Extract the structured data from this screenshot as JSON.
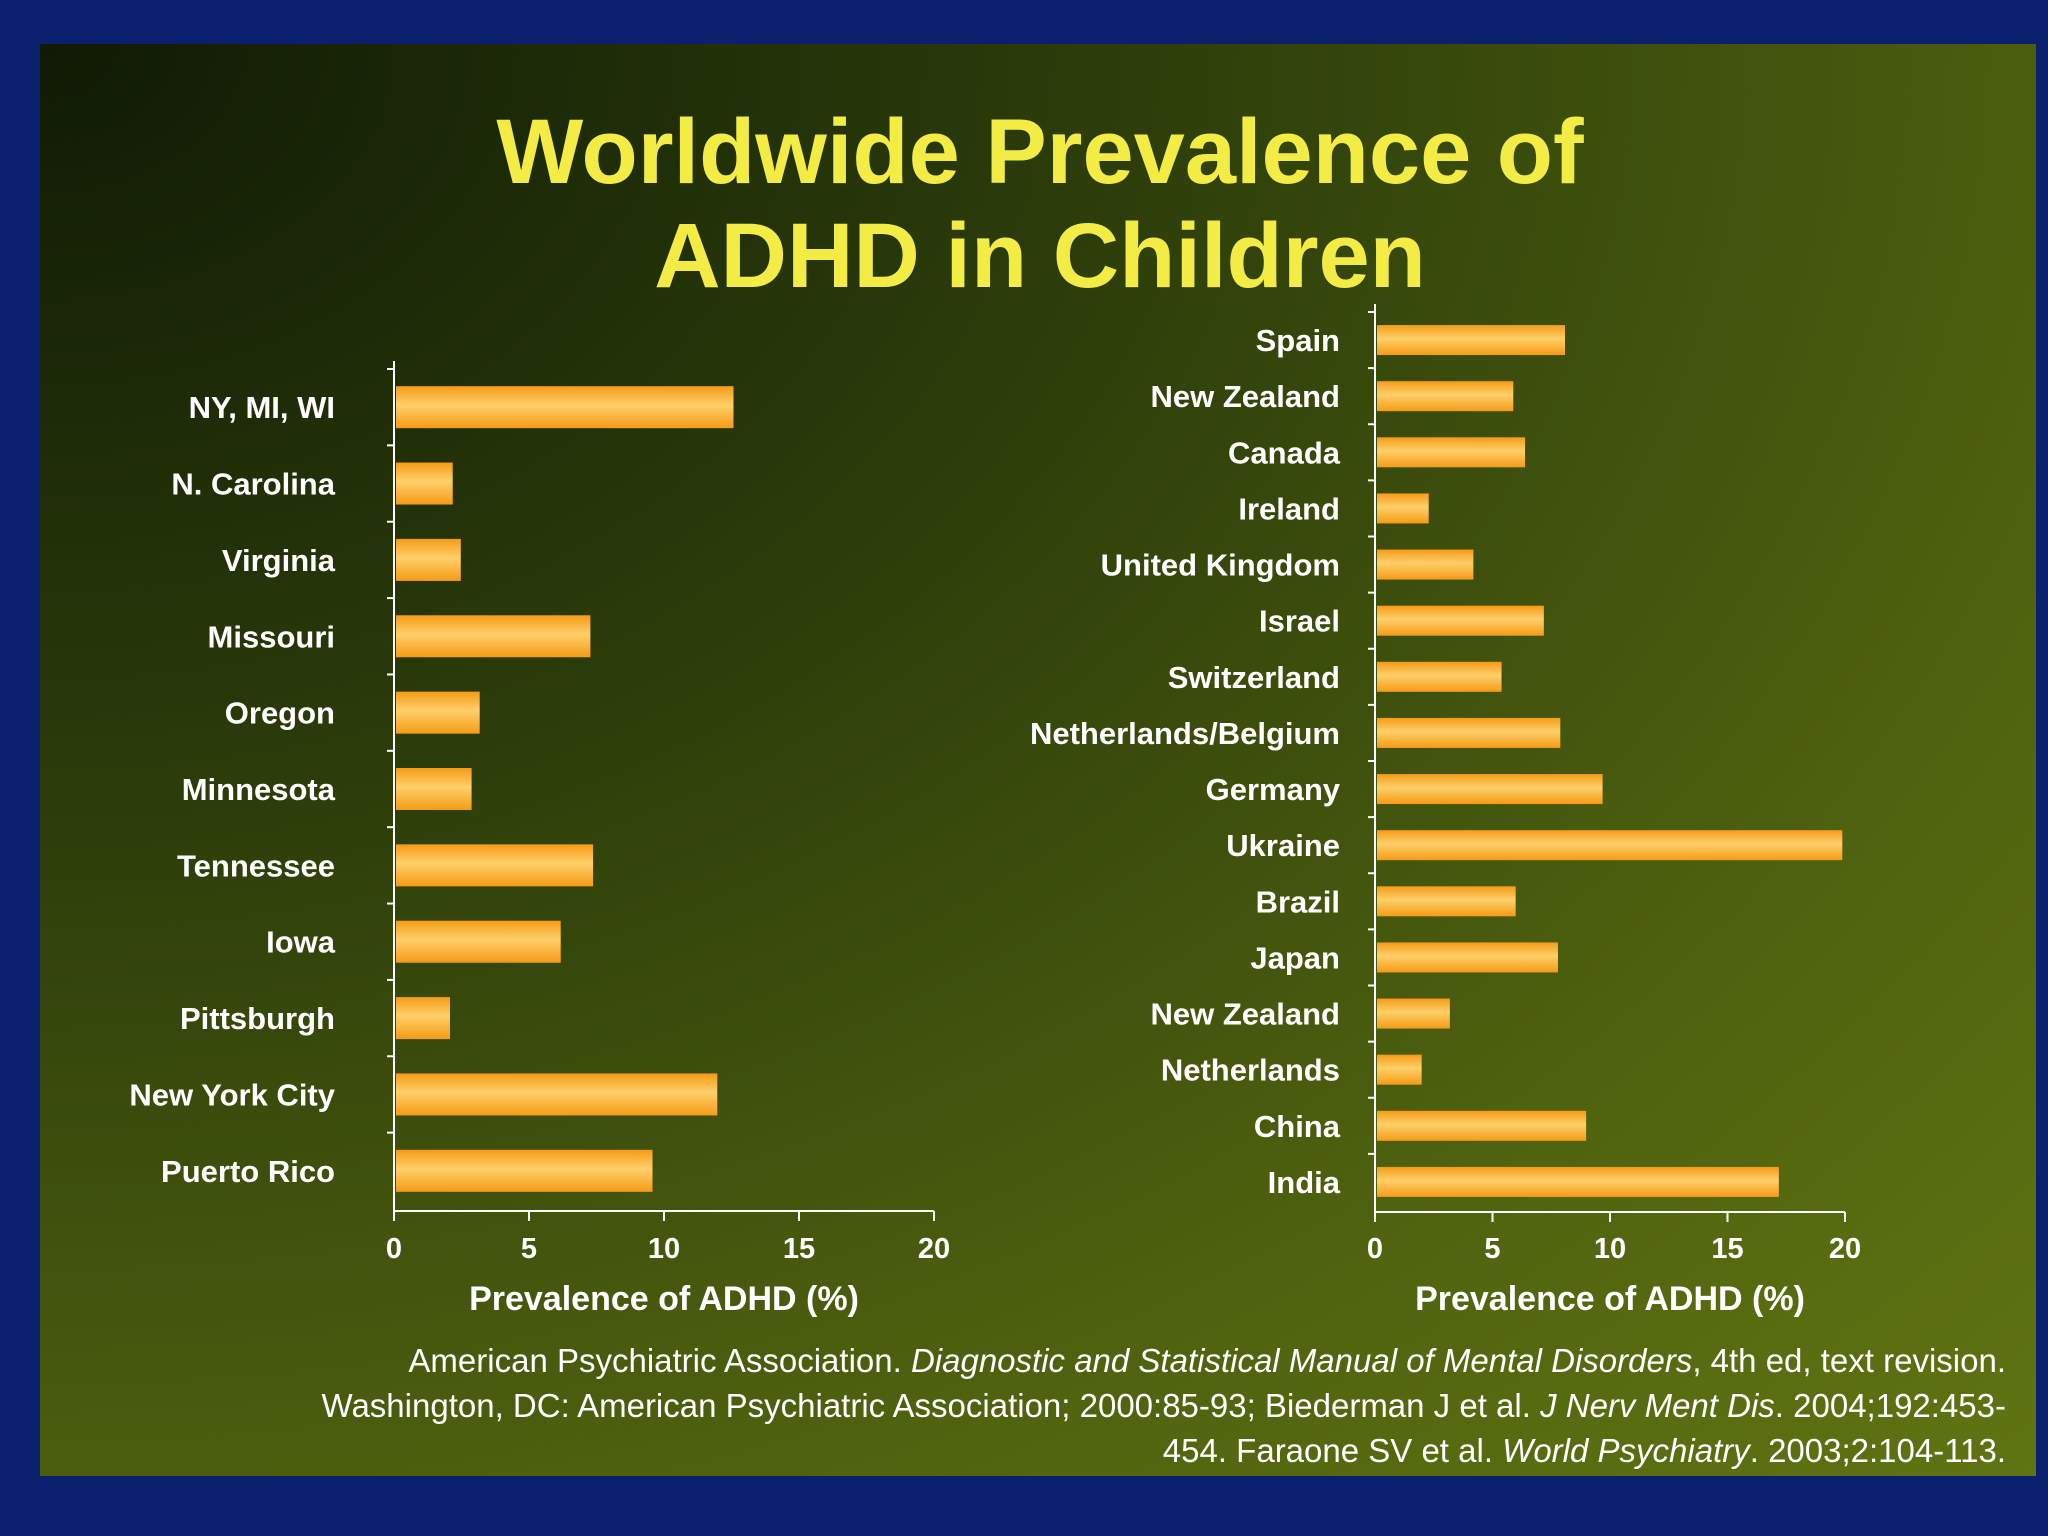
{
  "title": {
    "line1": "Worldwide Prevalence of",
    "line2": "ADHD in Children"
  },
  "colors": {
    "background": "#0a1f6e",
    "title": "#f2ec45",
    "bar": "#f59b16",
    "bar_highlight": "#ffcf6a",
    "text": "#ffffff"
  },
  "chart_data": [
    {
      "type": "bar",
      "orientation": "horizontal",
      "categories": [
        "NY, MI, WI",
        "N. Carolina",
        "Virginia",
        "Missouri",
        "Oregon",
        "Minnesota",
        "Tennessee",
        "Iowa",
        "Pittsburgh",
        "New York City",
        "Puerto Rico"
      ],
      "values": [
        12.5,
        2.1,
        2.4,
        7.2,
        3.1,
        2.8,
        7.3,
        6.1,
        2.0,
        11.9,
        9.5
      ],
      "xlabel": "Prevalence of ADHD (%)",
      "ylabel": "",
      "xlim": [
        0,
        20
      ],
      "xticks": [
        0,
        5,
        10,
        15,
        20
      ],
      "grid": false,
      "legend": "none"
    },
    {
      "type": "bar",
      "orientation": "horizontal",
      "categories": [
        "Spain",
        "New Zealand",
        "Canada",
        "Ireland",
        "United Kingdom",
        "Israel",
        "Switzerland",
        "Netherlands/Belgium",
        "Germany",
        "Ukraine",
        "Brazil",
        "Japan",
        "New Zealand",
        "Netherlands",
        "China",
        "India"
      ],
      "values": [
        8.0,
        5.8,
        6.3,
        2.2,
        4.1,
        7.1,
        5.3,
        7.8,
        9.6,
        19.8,
        5.9,
        7.7,
        3.1,
        1.9,
        8.9,
        17.1
      ],
      "xlabel": "Prevalence of ADHD (%)",
      "ylabel": "",
      "xlim": [
        0,
        20
      ],
      "xticks": [
        0,
        5,
        10,
        15,
        20
      ],
      "grid": false,
      "legend": "none"
    }
  ],
  "citation": {
    "part1": "American Psychiatric Association. ",
    "part2_italic": "Diagnostic and Statistical Manual of Mental Disorders",
    "part3": ", 4th ed, text revision. Washington, DC: American Psychiatric Association; 2000:85-93; Biederman J et al. ",
    "part4_italic": "J Nerv Ment Dis",
    "part5": ". 2004;192:453-454. Faraone SV et al. ",
    "part6_italic": "World Psychiatry",
    "part7": ". 2003;2:104-113."
  }
}
